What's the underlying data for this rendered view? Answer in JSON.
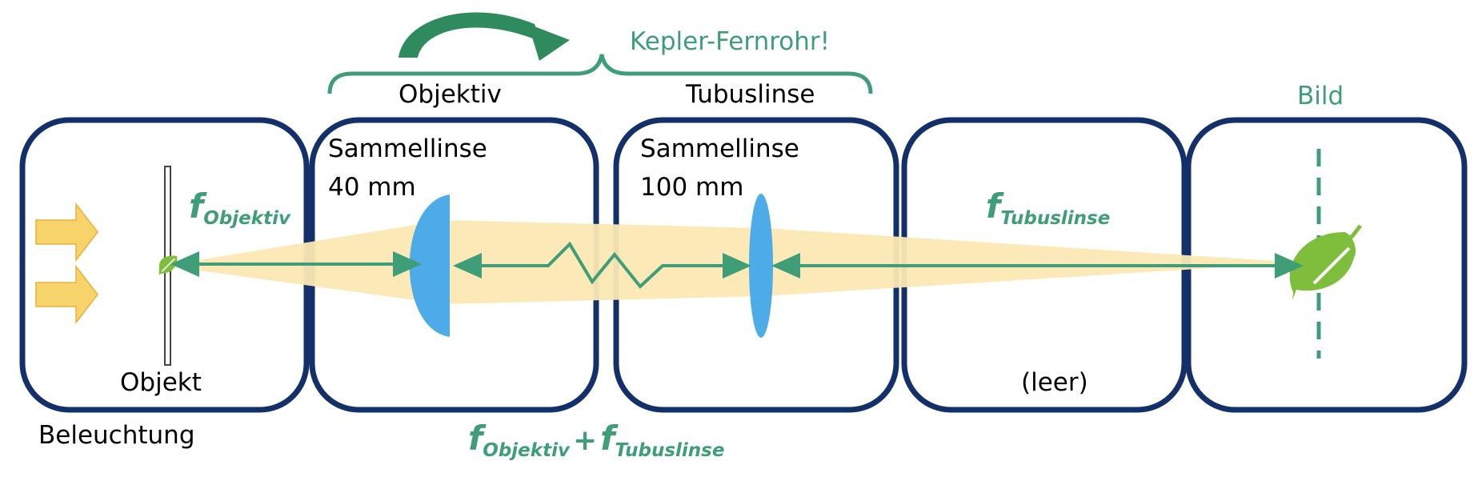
{
  "colors": {
    "box_stroke": "#14306b",
    "accent_green": "#3f9d78",
    "lens_blue": "#4dabe8",
    "beam_yellow": "#fbe8b4",
    "arrow_yellow": "#f8d26b",
    "leaf_green": "#7fbe3c"
  },
  "labels": {
    "kepler": "Kepler-Fernrohr!",
    "objektiv": "Objektiv",
    "tubuslinse": "Tubuslinse",
    "bild": "Bild",
    "objekt": "Objekt",
    "beleuchtung": "Beleuchtung",
    "leer": "(leer)",
    "lens1_line1": "Sammellinse",
    "lens1_line2": "40 mm",
    "lens2_line1": "Sammellinse",
    "lens2_line2": "100 mm"
  },
  "formulas": {
    "f_symbol": "f",
    "sub_objektiv": "Objektiv",
    "sub_tubuslinse": "Tubuslinse",
    "plus": "+"
  },
  "icons": [
    "arrow-right-icon",
    "curved-arrow-icon",
    "leaf-icon",
    "brace-icon"
  ]
}
